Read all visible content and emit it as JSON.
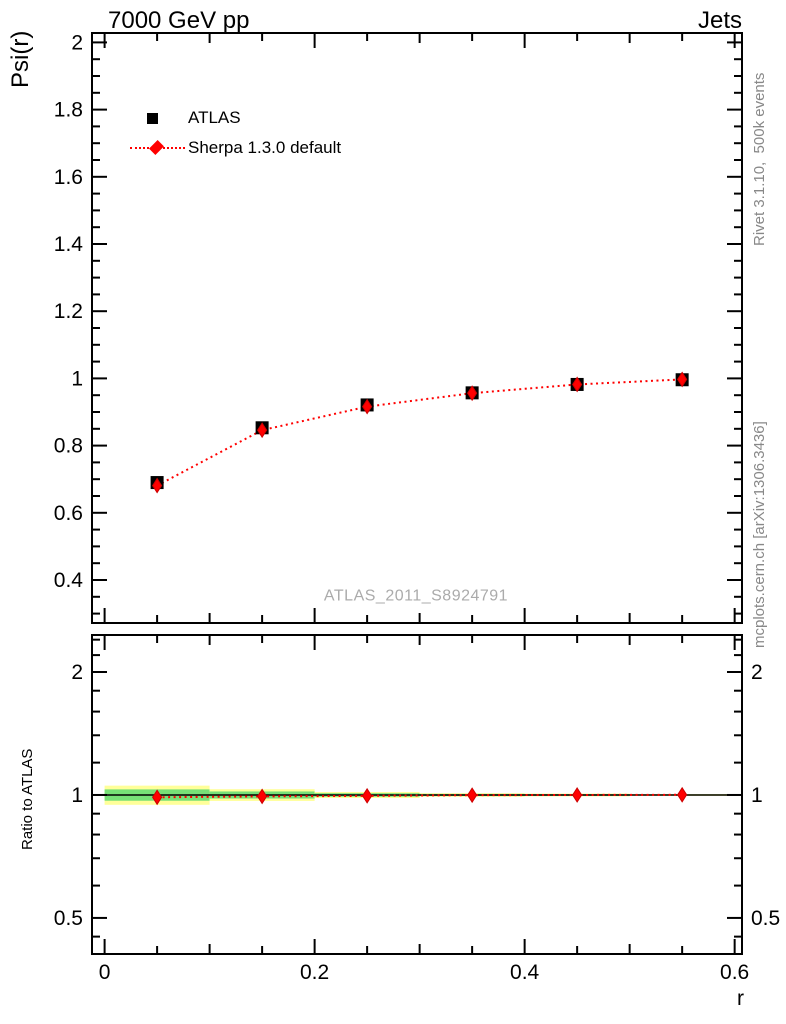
{
  "header": {
    "title_left": "7000 GeV pp",
    "title_right": "Jets"
  },
  "axes": {
    "main_y_title": "Psi(r)",
    "ratio_y_title": "Ratio to ATLAS",
    "x_title": "r"
  },
  "side_captions": {
    "rivet": "Rivet 3.1.10,  500k events",
    "mcplots": "mcplots.cern.ch [arXiv:1306.3436]"
  },
  "watermark": "ATLAS_2011_S8924791",
  "legend": {
    "items": [
      {
        "label": "ATLAS",
        "marker": "black-square"
      },
      {
        "label": "Sherpa 1.3.0 default",
        "marker": "red-diamond-dotted-line"
      }
    ]
  },
  "colors": {
    "data": "#000000",
    "mc": "#ff0000",
    "mc_dark": "#cc0000",
    "band_yellow": "#ffff99",
    "band_green": "#77e077",
    "caption_gray": "#888888",
    "watermark_gray": "#ababab"
  },
  "chart_data": [
    {
      "type": "line",
      "panel": "main",
      "title": "7000 GeV pp",
      "xlabel": "r",
      "ylabel": "Psi(r)",
      "xlim": [
        -0.012,
        0.607
      ],
      "ylim": [
        0.272,
        2.028
      ],
      "yscale": "linear",
      "x": [
        0.05,
        0.15,
        0.25,
        0.35,
        0.45,
        0.55
      ],
      "series": [
        {
          "name": "ATLAS",
          "marker": "square",
          "color": "#000000",
          "values": [
            0.69,
            0.853,
            0.921,
            0.957,
            0.982,
            0.996
          ]
        },
        {
          "name": "Sherpa 1.3.0 default",
          "marker": "diamond",
          "line": "dotted",
          "color": "#ff0000",
          "values": [
            0.681,
            0.846,
            0.916,
            0.956,
            0.982,
            0.997
          ]
        }
      ],
      "yticks": {
        "major": [
          2,
          1.8,
          1.6,
          1.4,
          1.2,
          1,
          0.8,
          0.6,
          0.4
        ],
        "labels": [
          "2",
          "1.8",
          "1.6",
          "1.4",
          "1.2",
          "1",
          "0.8",
          "0.6",
          "0.4"
        ],
        "minor_step": 0.05
      },
      "xticks": {
        "major": [
          0,
          0.2,
          0.4,
          0.6
        ],
        "labels": [
          "0",
          "0.2",
          "0.4",
          "0.6"
        ],
        "medium": [
          0.1,
          0.3,
          0.5
        ],
        "minor": [
          0.05,
          0.15,
          0.25,
          0.35,
          0.45,
          0.55
        ]
      }
    },
    {
      "type": "line",
      "panel": "ratio",
      "ylabel": "Ratio to ATLAS",
      "yscale": "log",
      "ylim": [
        0.408,
        2.464
      ],
      "x": [
        0.05,
        0.15,
        0.25,
        0.35,
        0.45,
        0.55
      ],
      "series": [
        {
          "name": "Sherpa 1.3.0 default",
          "marker": "diamond",
          "line": "dotted",
          "color": "#ff0000",
          "values": [
            0.987,
            0.992,
            0.995,
            0.999,
            1.0,
            1.001
          ]
        }
      ],
      "reference_line": 1,
      "bands": [
        {
          "r_lo": 0.0,
          "r_hi": 0.1,
          "yellow_pct": 5.4,
          "green_pct": 3.2
        },
        {
          "r_lo": 0.1,
          "r_hi": 0.2,
          "yellow_pct": 3.3,
          "green_pct": 2.0
        },
        {
          "r_lo": 0.2,
          "r_hi": 0.3,
          "yellow_pct": 1.7,
          "green_pct": 1.0
        },
        {
          "r_lo": 0.3,
          "r_hi": 0.4,
          "yellow_pct": 1.0,
          "green_pct": 0.6
        },
        {
          "r_lo": 0.4,
          "r_hi": 0.5,
          "yellow_pct": 0.8,
          "green_pct": 0.5
        },
        {
          "r_lo": 0.5,
          "r_hi": 0.6,
          "yellow_pct": 0.5,
          "green_pct": 0.3
        }
      ],
      "yticks": {
        "major": [
          0.5,
          1,
          2
        ],
        "labels": [
          "0.5",
          "1",
          "2"
        ],
        "minor": [
          0.45,
          0.6,
          0.7,
          0.8,
          0.9,
          1.2,
          1.4,
          1.6,
          1.8,
          2.2,
          2.4
        ]
      }
    }
  ]
}
